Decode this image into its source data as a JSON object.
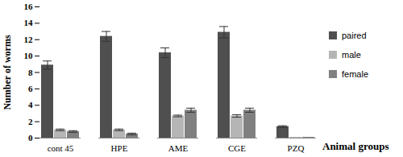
{
  "chart_data": {
    "type": "bar",
    "categories": [
      "cont 45",
      "HPE",
      "AME",
      "CGE",
      "PZQ"
    ],
    "series": [
      {
        "name": "paired",
        "color": "#4f4f4f",
        "values": [
          8.9,
          12.4,
          10.4,
          12.9,
          1.4
        ],
        "errors": [
          0.5,
          0.6,
          0.6,
          0.7,
          0.1
        ]
      },
      {
        "name": "male",
        "color": "#b5b5b5",
        "values": [
          1.0,
          1.0,
          2.7,
          2.7,
          0.1
        ],
        "errors": [
          0.1,
          0.1,
          0.1,
          0.15,
          0
        ]
      },
      {
        "name": "female",
        "color": "#808080",
        "values": [
          0.8,
          0.5,
          3.4,
          3.4,
          0.1
        ],
        "errors": [
          0.1,
          0.1,
          0.25,
          0.25,
          0
        ]
      }
    ],
    "xlabel": "Animal groups",
    "ylabel": "Number of worms",
    "ylim": [
      0,
      16
    ],
    "yticks": [
      0,
      2,
      4,
      6,
      8,
      10,
      12,
      14,
      16
    ],
    "grid": false,
    "legend": "right"
  }
}
